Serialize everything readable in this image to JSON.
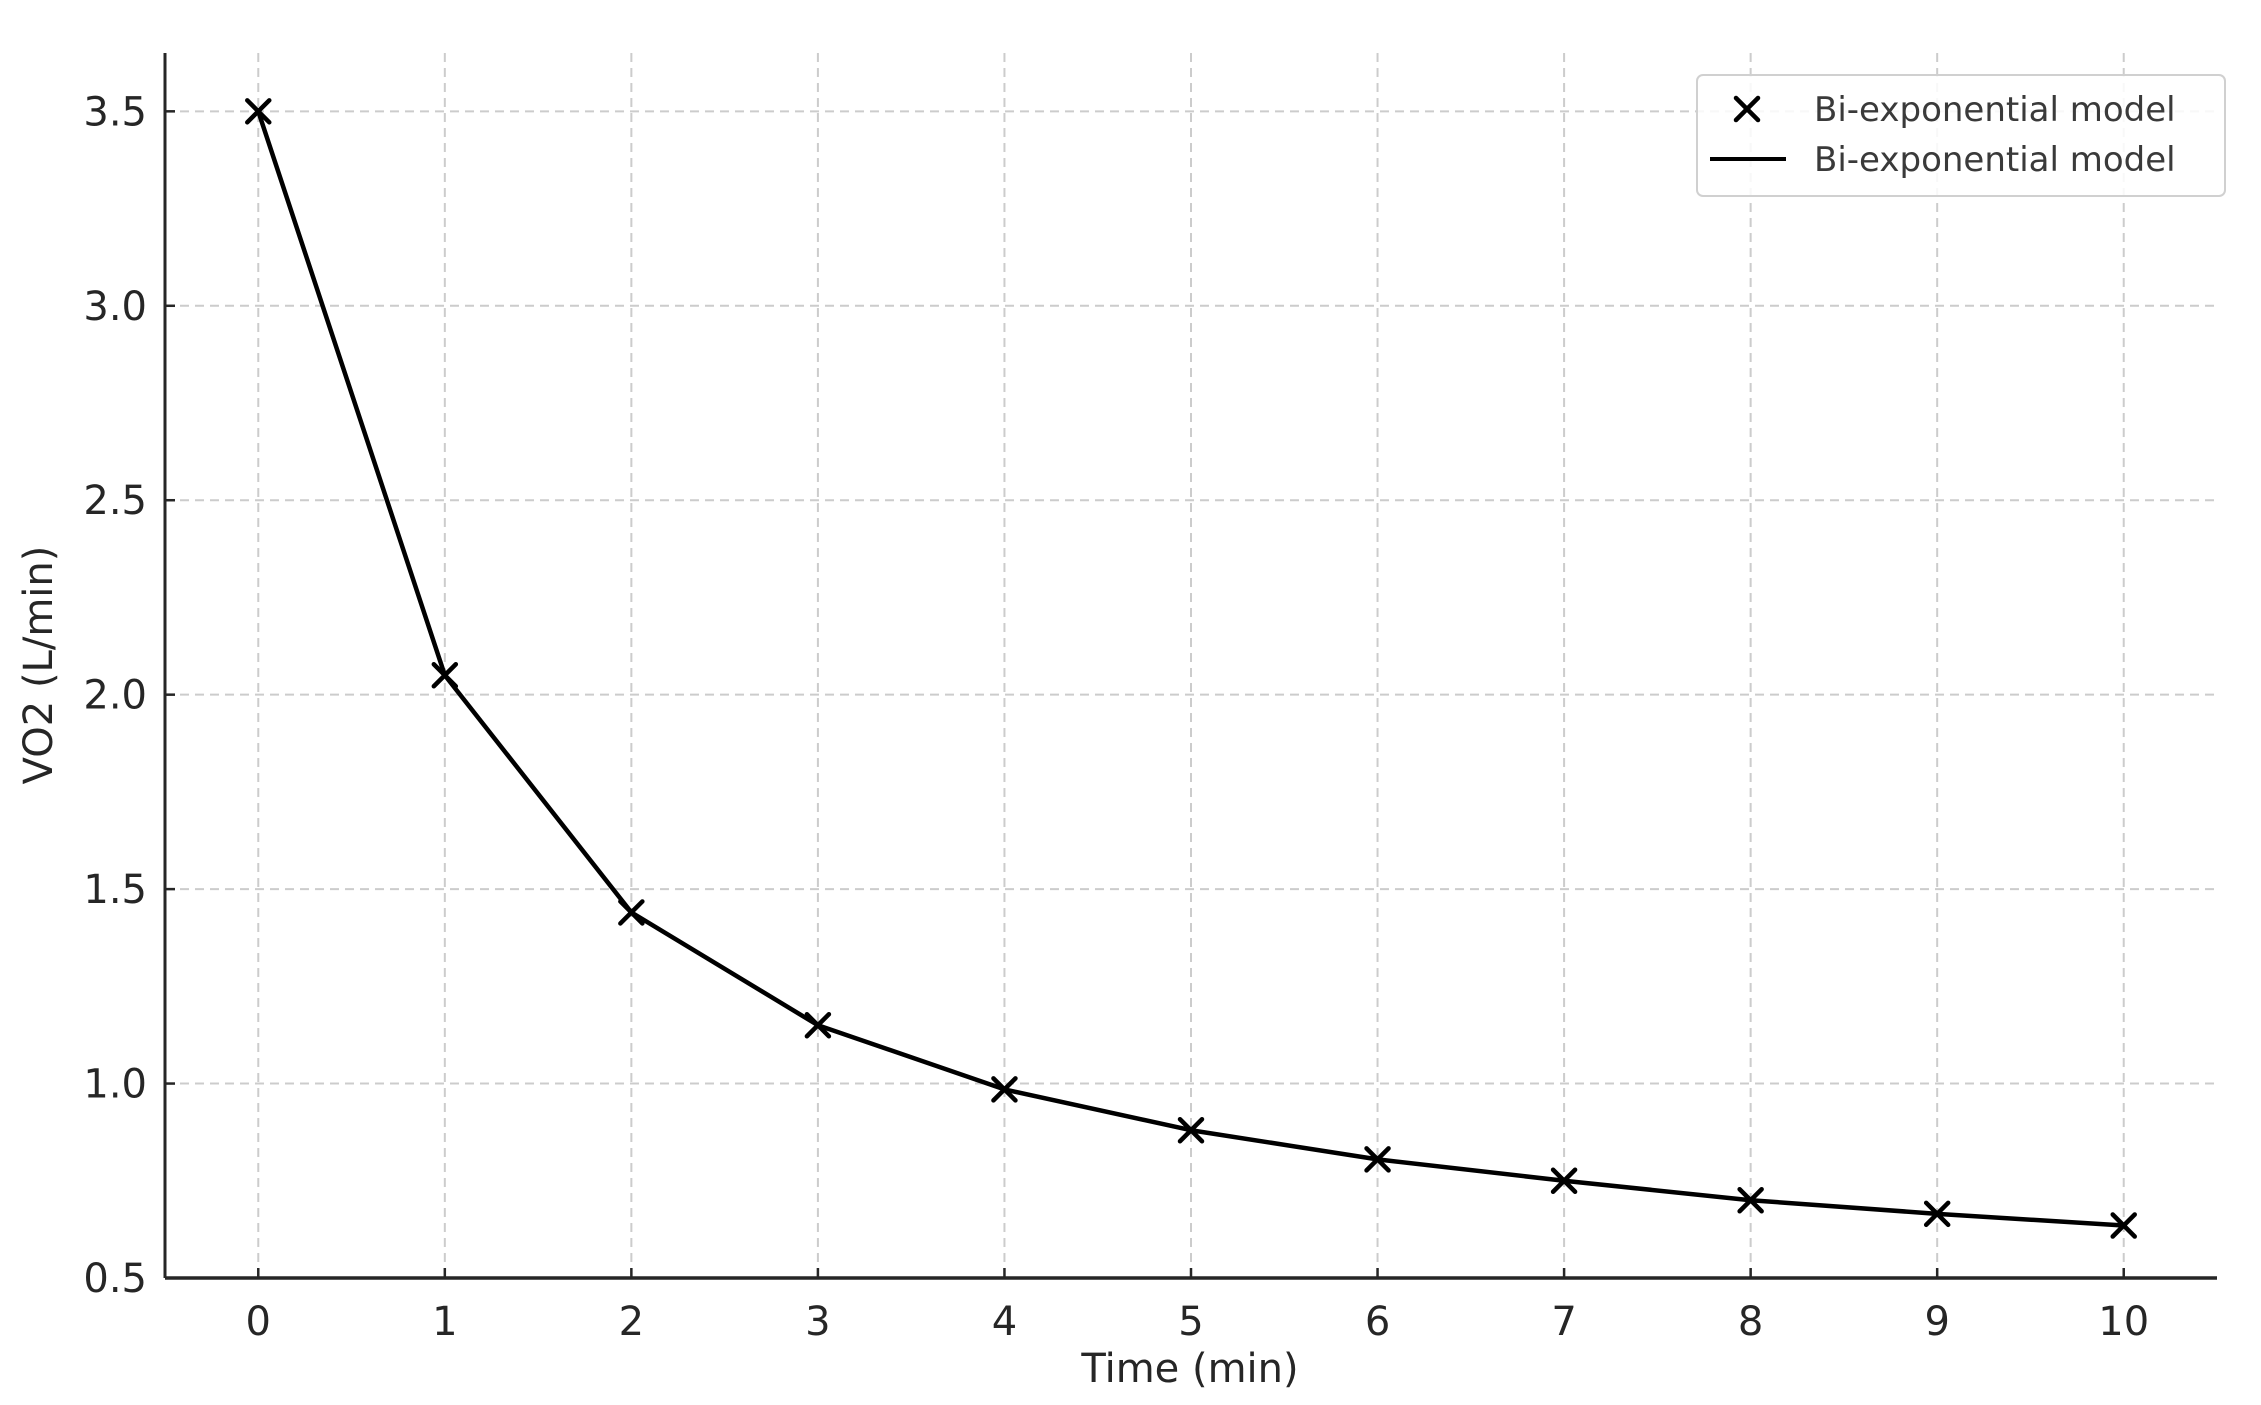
{
  "chart_data": {
    "type": "line",
    "title": "",
    "xlabel": "Time (min)",
    "ylabel": "VO2 (L/min)",
    "xlim": [
      -0.5,
      10.5
    ],
    "ylim": [
      0.5,
      3.65
    ],
    "grid": true,
    "legend_position": "upper right",
    "x_ticks": [
      "0",
      "1",
      "2",
      "3",
      "4",
      "5",
      "6",
      "7",
      "8",
      "9",
      "10"
    ],
    "y_ticks": [
      "0.5",
      "1.0",
      "1.5",
      "2.0",
      "2.5",
      "3.0",
      "3.5"
    ],
    "x": [
      0,
      1,
      2,
      3,
      4,
      5,
      6,
      7,
      8,
      9,
      10
    ],
    "series": [
      {
        "name": "Bi-exponential model",
        "kind": "scatter",
        "marker": "x",
        "color": "#000000",
        "values": [
          3.5,
          2.05,
          1.44,
          1.15,
          0.985,
          0.88,
          0.805,
          0.75,
          0.7,
          0.665,
          0.635
        ]
      },
      {
        "name": "Bi-exponential model",
        "kind": "line",
        "color": "#000000",
        "values": [
          3.5,
          2.05,
          1.44,
          1.15,
          0.985,
          0.88,
          0.805,
          0.75,
          0.7,
          0.665,
          0.635
        ]
      }
    ],
    "legend": [
      {
        "label": "Bi-exponential model",
        "symbol": "x-marker"
      },
      {
        "label": "Bi-exponential model",
        "symbol": "line"
      }
    ]
  },
  "colors": {
    "series": "#000000",
    "grid": "#cccccc",
    "axis": "#262626",
    "legend_border": "#d0d0d0"
  }
}
